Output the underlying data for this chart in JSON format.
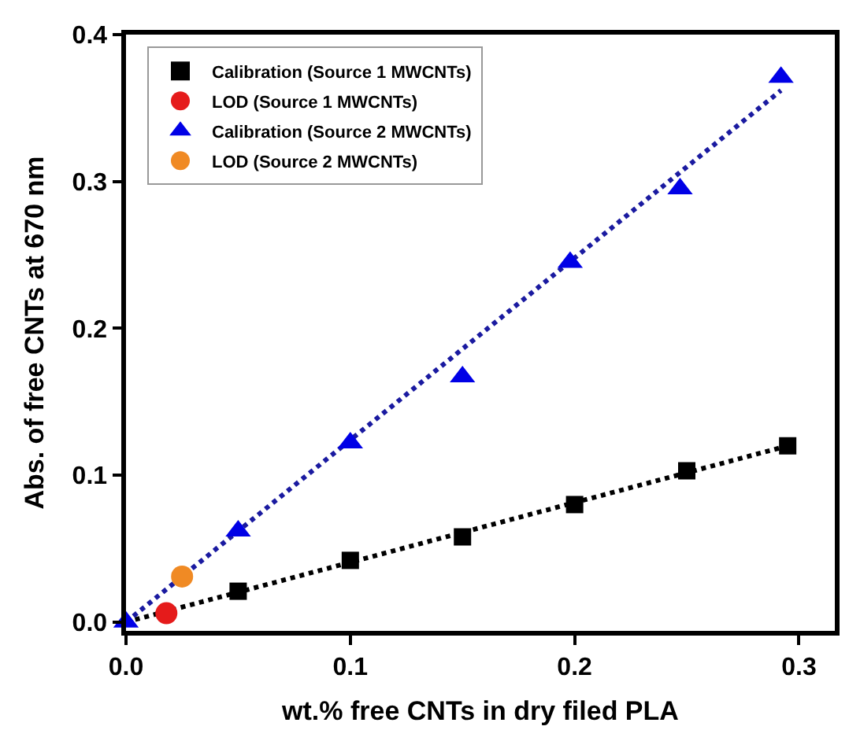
{
  "chart_data": {
    "type": "scatter",
    "xlabel": "wt.% free CNTs in dry filed PLA",
    "ylabel": "Abs. of free CNTs at 670 nm",
    "xlim": [
      0,
      0.316
    ],
    "ylim": [
      -0.006,
      0.4
    ],
    "xticks": [
      {
        "value": 0,
        "label": "0.0"
      },
      0.1,
      0.2,
      0.3
    ],
    "yticks": [
      {
        "value": 0,
        "label": "0.0"
      },
      0.1,
      0.2,
      0.3,
      0.4
    ],
    "grid": false,
    "legend": "top left",
    "series": [
      {
        "type": "line",
        "color": "#000000",
        "line_style": "dotted",
        "marker": "none",
        "x": [
          0,
          0.295
        ],
        "values": [
          0,
          0.12
        ]
      },
      {
        "type": "line",
        "color": "#1a1aa0",
        "line_style": "dotted",
        "marker": "none",
        "x": [
          0,
          0.292
        ],
        "values": [
          0,
          0.362
        ]
      },
      {
        "name": "Calibration (Source 1 MWCNTs)",
        "color": "#000000",
        "marker": "square",
        "x": [
          0.05,
          0.1,
          0.15,
          0.2,
          0.25,
          0.295
        ],
        "values": [
          0.021,
          0.042,
          0.058,
          0.08,
          0.103,
          0.12
        ]
      },
      {
        "name": "LOD (Source 1 MWCNTs)",
        "color": "#e51b1b",
        "marker": "circle",
        "x": [
          0.018
        ],
        "values": [
          0.006
        ]
      },
      {
        "name": "Calibration (Source 2 MWCNTs)",
        "color": "#0000e6",
        "marker": "triangle",
        "x": [
          0,
          0.05,
          0.1,
          0.15,
          0.198,
          0.247,
          0.292
        ],
        "values": [
          0,
          0.062,
          0.122,
          0.167,
          0.245,
          0.295,
          0.371
        ]
      },
      {
        "name": "LOD (Source 2 MWCNTs)",
        "color": "#f08a24",
        "marker": "circle",
        "x": [
          0.025
        ],
        "values": [
          0.031
        ]
      }
    ]
  }
}
